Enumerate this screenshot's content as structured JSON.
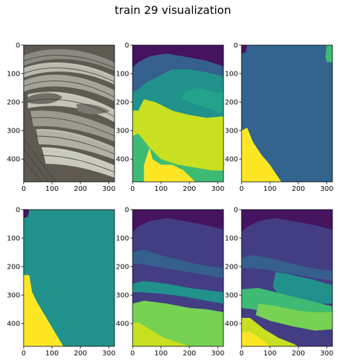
{
  "figure": {
    "title": "train 29 visualization"
  },
  "palette": {
    "purple": "#46135f",
    "indigo": "#433d84",
    "blue": "#355f8d",
    "slate": "#32648e",
    "teal": "#21918c",
    "sea": "#24a38b",
    "green": "#3dbb74",
    "lime": "#77d153",
    "chartreuse": "#c8e020",
    "yellow": "#fde725",
    "rope_dark": "#3a3a34",
    "rope_mid": "#8a8a80",
    "rope_light": "#c2c2b6",
    "wood": "#5e5a52",
    "axis": "#000000"
  },
  "chart_data": [
    {
      "type": "heatmap",
      "panel": "1",
      "content": "photograph of coiled ropes on wooden dock",
      "xlim": [
        0,
        320
      ],
      "ylim": [
        480,
        0
      ],
      "xticks": [
        0,
        100,
        200,
        300
      ],
      "yticks": [
        0,
        100,
        200,
        300,
        400
      ],
      "regions": []
    },
    {
      "type": "heatmap",
      "panel": "2",
      "xlim": [
        0,
        320
      ],
      "ylim": [
        480,
        0
      ],
      "xticks": [
        0,
        100,
        200,
        300
      ],
      "yticks": [
        0,
        100,
        200,
        300,
        400
      ],
      "background": "teal",
      "regions": [
        {
          "color": "purple",
          "points": [
            [
              0,
              0
            ],
            [
              320,
              0
            ],
            [
              320,
              75
            ],
            [
              260,
              55
            ],
            [
              180,
              40
            ],
            [
              120,
              30
            ],
            [
              60,
              40
            ],
            [
              20,
              60
            ],
            [
              0,
              80
            ]
          ]
        },
        {
          "color": "blue",
          "points": [
            [
              0,
              80
            ],
            [
              20,
              60
            ],
            [
              60,
              40
            ],
            [
              120,
              30
            ],
            [
              180,
              40
            ],
            [
              260,
              55
            ],
            [
              320,
              75
            ],
            [
              320,
              110
            ],
            [
              260,
              95
            ],
            [
              200,
              85
            ],
            [
              140,
              85
            ],
            [
              90,
              110
            ],
            [
              50,
              130
            ],
            [
              20,
              155
            ],
            [
              0,
              165
            ]
          ]
        },
        {
          "color": "sea",
          "points": [
            [
              230,
              150
            ],
            [
              300,
              168
            ],
            [
              320,
              165
            ],
            [
              320,
              240
            ],
            [
              260,
              220
            ],
            [
              200,
              200
            ],
            [
              170,
              185
            ],
            [
              190,
              160
            ]
          ]
        },
        {
          "color": "chartreuse",
          "points": [
            [
              0,
              230
            ],
            [
              20,
              230
            ],
            [
              40,
              190
            ],
            [
              80,
              200
            ],
            [
              140,
              230
            ],
            [
              200,
              245
            ],
            [
              260,
              255
            ],
            [
              320,
              250
            ],
            [
              320,
              480
            ],
            [
              0,
              480
            ]
          ]
        },
        {
          "color": "green",
          "points": [
            [
              0,
              320
            ],
            [
              20,
              310
            ],
            [
              60,
              360
            ],
            [
              100,
              400
            ],
            [
              160,
              420
            ],
            [
              220,
              430
            ],
            [
              280,
              440
            ],
            [
              320,
              440
            ],
            [
              320,
              480
            ],
            [
              0,
              480
            ]
          ]
        },
        {
          "color": "yellow",
          "points": [
            [
              60,
              360
            ],
            [
              70,
              400
            ],
            [
              100,
              420
            ],
            [
              140,
              420
            ],
            [
              180,
              440
            ],
            [
              200,
              460
            ],
            [
              220,
              480
            ],
            [
              40,
              480
            ],
            [
              40,
              420
            ]
          ]
        }
      ]
    },
    {
      "type": "heatmap",
      "panel": "3",
      "xlim": [
        0,
        320
      ],
      "ylim": [
        480,
        0
      ],
      "xticks": [
        0,
        100,
        200,
        300
      ],
      "yticks": [
        0,
        100,
        200,
        300,
        400
      ],
      "background": "slate",
      "regions": [
        {
          "color": "purple",
          "points": [
            [
              0,
              0
            ],
            [
              20,
              0
            ],
            [
              15,
              25
            ],
            [
              0,
              30
            ]
          ]
        },
        {
          "color": "green",
          "points": [
            [
              300,
              0
            ],
            [
              320,
              0
            ],
            [
              320,
              60
            ],
            [
              300,
              60
            ],
            [
              295,
              40
            ]
          ]
        },
        {
          "color": "yellow",
          "points": [
            [
              0,
              300
            ],
            [
              20,
              290
            ],
            [
              40,
              340
            ],
            [
              70,
              385
            ],
            [
              100,
              420
            ],
            [
              140,
              480
            ],
            [
              0,
              480
            ]
          ]
        }
      ]
    },
    {
      "type": "heatmap",
      "panel": "4",
      "xlim": [
        0,
        320
      ],
      "ylim": [
        480,
        0
      ],
      "xticks": [
        0,
        100,
        200,
        300
      ],
      "yticks": [
        0,
        100,
        200,
        300,
        400
      ],
      "background": "teal",
      "regions": [
        {
          "color": "purple",
          "points": [
            [
              0,
              0
            ],
            [
              20,
              0
            ],
            [
              15,
              25
            ],
            [
              0,
              30
            ]
          ]
        },
        {
          "color": "yellow",
          "points": [
            [
              0,
              230
            ],
            [
              20,
              230
            ],
            [
              30,
              290
            ],
            [
              50,
              330
            ],
            [
              80,
              380
            ],
            [
              110,
              430
            ],
            [
              140,
              480
            ],
            [
              0,
              480
            ]
          ]
        }
      ]
    },
    {
      "type": "heatmap",
      "panel": "5",
      "xlim": [
        0,
        320
      ],
      "ylim": [
        480,
        0
      ],
      "xticks": [
        0,
        100,
        200,
        300
      ],
      "yticks": [
        0,
        100,
        200,
        300,
        400
      ],
      "background": "indigo",
      "regions": [
        {
          "color": "purple",
          "points": [
            [
              0,
              0
            ],
            [
              320,
              0
            ],
            [
              320,
              70
            ],
            [
              260,
              55
            ],
            [
              180,
              40
            ],
            [
              120,
              30
            ],
            [
              60,
              40
            ],
            [
              20,
              60
            ],
            [
              0,
              80
            ]
          ]
        },
        {
          "color": "blue",
          "points": [
            [
              0,
              150
            ],
            [
              40,
              140
            ],
            [
              100,
              160
            ],
            [
              160,
              175
            ],
            [
              220,
              190
            ],
            [
              280,
              200
            ],
            [
              320,
              205
            ],
            [
              320,
              240
            ],
            [
              260,
              230
            ],
            [
              200,
              220
            ],
            [
              140,
              210
            ],
            [
              80,
              200
            ],
            [
              30,
              190
            ],
            [
              0,
              190
            ]
          ]
        },
        {
          "color": "teal",
          "points": [
            [
              0,
              260
            ],
            [
              40,
              250
            ],
            [
              120,
              260
            ],
            [
              200,
              275
            ],
            [
              280,
              285
            ],
            [
              320,
              290
            ],
            [
              320,
              330
            ],
            [
              260,
              320
            ],
            [
              180,
              305
            ],
            [
              100,
              295
            ],
            [
              30,
              290
            ],
            [
              0,
              290
            ]
          ]
        },
        {
          "color": "lime",
          "points": [
            [
              0,
              330
            ],
            [
              40,
              320
            ],
            [
              120,
              330
            ],
            [
              200,
              345
            ],
            [
              260,
              350
            ],
            [
              320,
              360
            ],
            [
              320,
              480
            ],
            [
              0,
              480
            ]
          ]
        },
        {
          "color": "chartreuse",
          "points": [
            [
              0,
              400
            ],
            [
              20,
              395
            ],
            [
              60,
              420
            ],
            [
              110,
              450
            ],
            [
              170,
              470
            ],
            [
              200,
              480
            ],
            [
              0,
              480
            ]
          ]
        }
      ]
    },
    {
      "type": "heatmap",
      "panel": "6",
      "xlim": [
        0,
        320
      ],
      "ylim": [
        480,
        0
      ],
      "xticks": [
        0,
        100,
        200,
        300
      ],
      "yticks": [
        0,
        100,
        200,
        300,
        400
      ],
      "background": "indigo",
      "regions": [
        {
          "color": "purple",
          "points": [
            [
              0,
              0
            ],
            [
              320,
              0
            ],
            [
              320,
              70
            ],
            [
              260,
              55
            ],
            [
              180,
              40
            ],
            [
              120,
              30
            ],
            [
              60,
              40
            ],
            [
              20,
              60
            ],
            [
              0,
              80
            ]
          ]
        },
        {
          "color": "blue",
          "points": [
            [
              0,
              170
            ],
            [
              40,
              160
            ],
            [
              100,
              170
            ],
            [
              160,
              185
            ],
            [
              220,
              200
            ],
            [
              280,
              210
            ],
            [
              320,
              215
            ],
            [
              320,
              250
            ],
            [
              260,
              240
            ],
            [
              200,
              230
            ],
            [
              140,
              220
            ],
            [
              80,
              210
            ],
            [
              30,
              205
            ],
            [
              0,
              205
            ]
          ]
        },
        {
          "color": "teal",
          "points": [
            [
              120,
              220
            ],
            [
              160,
              225
            ],
            [
              200,
              235
            ],
            [
              250,
              245
            ],
            [
              300,
              260
            ],
            [
              320,
              265
            ],
            [
              320,
              330
            ],
            [
              270,
              330
            ],
            [
              220,
              320
            ],
            [
              170,
              310
            ],
            [
              130,
              300
            ],
            [
              110,
              270
            ]
          ]
        },
        {
          "color": "green",
          "points": [
            [
              0,
              280
            ],
            [
              60,
              275
            ],
            [
              120,
              290
            ],
            [
              180,
              305
            ],
            [
              240,
              320
            ],
            [
              300,
              335
            ],
            [
              320,
              340
            ],
            [
              320,
              400
            ],
            [
              260,
              395
            ],
            [
              180,
              380
            ],
            [
              100,
              365
            ],
            [
              40,
              350
            ],
            [
              0,
              345
            ]
          ]
        },
        {
          "color": "lime",
          "points": [
            [
              60,
              330
            ],
            [
              130,
              340
            ],
            [
              200,
              355
            ],
            [
              260,
              360
            ],
            [
              320,
              360
            ],
            [
              320,
              420
            ],
            [
              260,
              425
            ],
            [
              180,
              410
            ],
            [
              100,
              390
            ],
            [
              50,
              370
            ]
          ]
        },
        {
          "color": "chartreuse",
          "points": [
            [
              0,
              380
            ],
            [
              30,
              380
            ],
            [
              80,
              420
            ],
            [
              130,
              450
            ],
            [
              180,
              470
            ],
            [
              200,
              480
            ],
            [
              0,
              480
            ]
          ]
        },
        {
          "color": "yellow",
          "points": [
            [
              0,
              430
            ],
            [
              30,
              430
            ],
            [
              70,
              455
            ],
            [
              100,
              480
            ],
            [
              0,
              480
            ]
          ]
        }
      ]
    }
  ]
}
